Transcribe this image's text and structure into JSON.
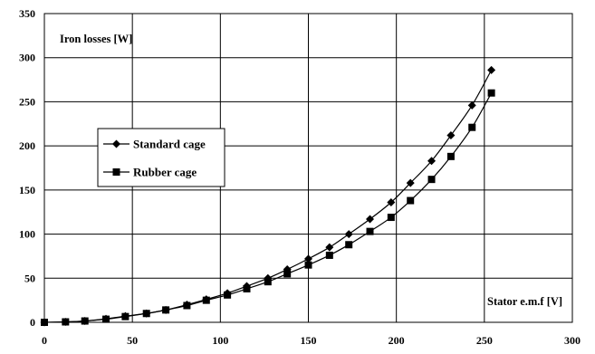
{
  "chart_data": {
    "type": "line",
    "ylabel": "Iron losses [W]",
    "xlabel": "Stator e.m.f [V]",
    "xlim": [
      0,
      300
    ],
    "ylim": [
      0,
      350
    ],
    "x_ticks": [
      "0",
      "50",
      "100",
      "150",
      "200",
      "250",
      "300"
    ],
    "y_ticks": [
      "0",
      "50",
      "100",
      "150",
      "200",
      "250",
      "300",
      "350"
    ],
    "grid": true,
    "legend_position": "middle-left",
    "series": [
      {
        "name": "Standard cage",
        "marker": "diamond",
        "color": "#000000",
        "points": [
          [
            0,
            0
          ],
          [
            12,
            0.5
          ],
          [
            23,
            1.5
          ],
          [
            35,
            4
          ],
          [
            46,
            7
          ],
          [
            58,
            10
          ],
          [
            69,
            14
          ],
          [
            81,
            20
          ],
          [
            92,
            26
          ],
          [
            104,
            33
          ],
          [
            115,
            41
          ],
          [
            127,
            50
          ],
          [
            138,
            60
          ],
          [
            150,
            72
          ],
          [
            162,
            85
          ],
          [
            173,
            100
          ],
          [
            185,
            117
          ],
          [
            197,
            136
          ],
          [
            208,
            158
          ],
          [
            220,
            183
          ],
          [
            231,
            212
          ],
          [
            243,
            246
          ],
          [
            254,
            286
          ]
        ]
      },
      {
        "name": "Rubber cage",
        "marker": "square",
        "color": "#000000",
        "points": [
          [
            0,
            0
          ],
          [
            12,
            0.5
          ],
          [
            23,
            1.5
          ],
          [
            35,
            3.5
          ],
          [
            46,
            6.5
          ],
          [
            58,
            10
          ],
          [
            69,
            14
          ],
          [
            81,
            19
          ],
          [
            92,
            25
          ],
          [
            104,
            31
          ],
          [
            115,
            38
          ],
          [
            127,
            46
          ],
          [
            138,
            55
          ],
          [
            150,
            65
          ],
          [
            162,
            76
          ],
          [
            173,
            88
          ],
          [
            185,
            103
          ],
          [
            197,
            119
          ],
          [
            208,
            138
          ],
          [
            220,
            162
          ],
          [
            231,
            188
          ],
          [
            243,
            221
          ],
          [
            254,
            260
          ]
        ]
      }
    ]
  }
}
